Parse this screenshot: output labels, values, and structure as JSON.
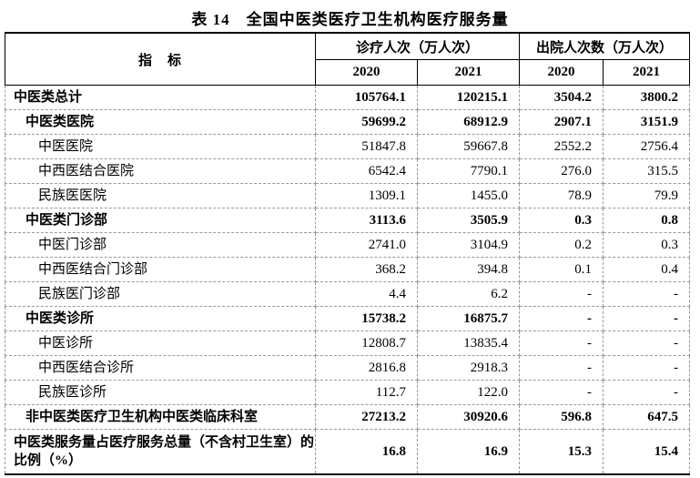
{
  "title": "表 14　全国中医类医疗卫生机构医疗服务量",
  "table": {
    "indicator_header": "指　标",
    "group_headers": [
      "诊疗人次（万人次）",
      "出院人次数（万人次）"
    ],
    "year_headers": [
      "2020",
      "2021",
      "2020",
      "2021"
    ],
    "rows": [
      {
        "label": "中医类总计",
        "indent": 0,
        "bold": true,
        "values": [
          "105764.1",
          "120215.1",
          "3504.2",
          "3800.2"
        ]
      },
      {
        "label": "中医类医院",
        "indent": 1,
        "bold": true,
        "values": [
          "59699.2",
          "68912.9",
          "2907.1",
          "3151.9"
        ]
      },
      {
        "label": "中医医院",
        "indent": 2,
        "bold": false,
        "values": [
          "51847.8",
          "59667.8",
          "2552.2",
          "2756.4"
        ]
      },
      {
        "label": "中西医结合医院",
        "indent": 2,
        "bold": false,
        "values": [
          "6542.4",
          "7790.1",
          "276.0",
          "315.5"
        ]
      },
      {
        "label": "民族医医院",
        "indent": 2,
        "bold": false,
        "values": [
          "1309.1",
          "1455.0",
          "78.9",
          "79.9"
        ]
      },
      {
        "label": "中医类门诊部",
        "indent": 1,
        "bold": true,
        "values": [
          "3113.6",
          "3505.9",
          "0.3",
          "0.8"
        ]
      },
      {
        "label": "中医门诊部",
        "indent": 2,
        "bold": false,
        "values": [
          "2741.0",
          "3104.9",
          "0.2",
          "0.3"
        ]
      },
      {
        "label": "中西医结合门诊部",
        "indent": 2,
        "bold": false,
        "values": [
          "368.2",
          "394.8",
          "0.1",
          "0.4"
        ]
      },
      {
        "label": "民族医门诊部",
        "indent": 2,
        "bold": false,
        "values": [
          "4.4",
          "6.2",
          "-",
          "-"
        ]
      },
      {
        "label": "中医类诊所",
        "indent": 1,
        "bold": true,
        "values": [
          "15738.2",
          "16875.7",
          "-",
          "-"
        ]
      },
      {
        "label": "中医诊所",
        "indent": 2,
        "bold": false,
        "values": [
          "12808.7",
          "13835.4",
          "-",
          "-"
        ]
      },
      {
        "label": "中西医结合诊所",
        "indent": 2,
        "bold": false,
        "values": [
          "2816.8",
          "2918.3",
          "-",
          "-"
        ]
      },
      {
        "label": "民族医诊所",
        "indent": 2,
        "bold": false,
        "values": [
          "112.7",
          "122.0",
          "-",
          "-"
        ]
      },
      {
        "label": "非中医类医疗卫生机构中医类临床科室",
        "indent": 1,
        "bold": true,
        "values": [
          "27213.2",
          "30920.6",
          "596.8",
          "647.5"
        ]
      },
      {
        "label": "中医类服务量占医疗服务总量（不含村卫生室）的比例（%）",
        "indent": 0,
        "bold": true,
        "values": [
          "16.8",
          "16.9",
          "15.3",
          "15.4"
        ]
      }
    ]
  },
  "colors": {
    "text": "#000000",
    "solid_border": "#000000",
    "dashed_border": "#999999",
    "background": "#ffffff"
  }
}
